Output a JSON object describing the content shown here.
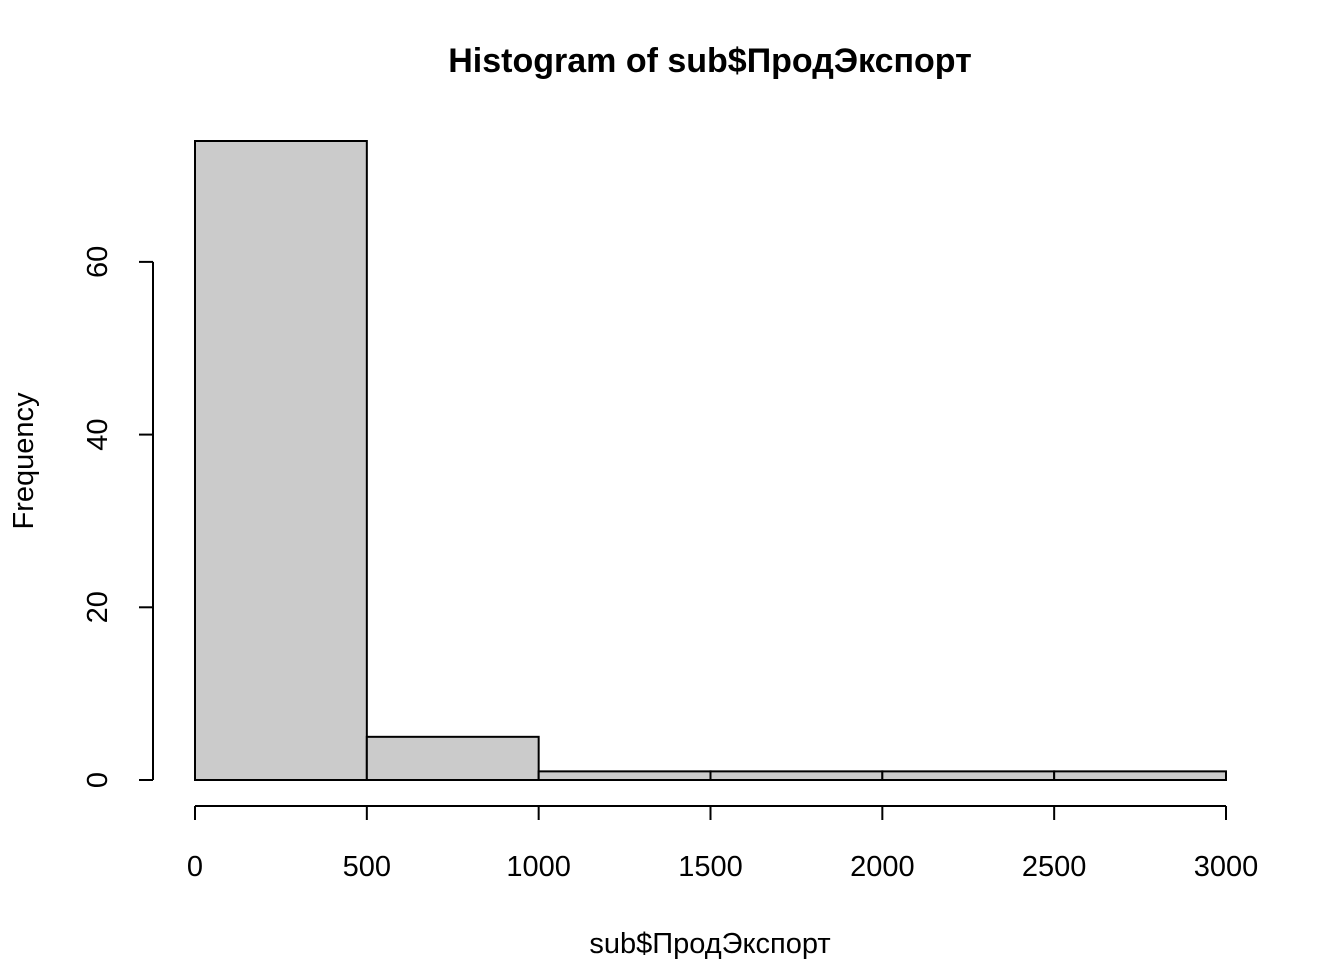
{
  "chart_data": {
    "type": "bar",
    "title": "Histogram of sub$ПродЭкспорт",
    "xlabel": "sub$ПродЭкспорт",
    "ylabel": "Frequency",
    "bins": [
      {
        "start": 0,
        "end": 500,
        "count": 74
      },
      {
        "start": 500,
        "end": 1000,
        "count": 5
      },
      {
        "start": 1000,
        "end": 1500,
        "count": 1
      },
      {
        "start": 1500,
        "end": 2000,
        "count": 1
      },
      {
        "start": 2000,
        "end": 2500,
        "count": 1
      },
      {
        "start": 2500,
        "end": 3000,
        "count": 1
      }
    ],
    "xlim": [
      0,
      3000
    ],
    "ylim": [
      0,
      74
    ],
    "x_ticks": [
      0,
      500,
      1000,
      1500,
      2000,
      2500,
      3000
    ],
    "y_ticks": [
      0,
      20,
      40,
      60
    ],
    "x_tick_labels": [
      "0",
      "500",
      "1000",
      "1500",
      "2000",
      "2500",
      "3000"
    ],
    "y_tick_labels": [
      "0",
      "20",
      "40",
      "60"
    ],
    "grid": false,
    "colors": {
      "bar_fill": "#cbcbcb",
      "bar_stroke": "#000000"
    }
  }
}
